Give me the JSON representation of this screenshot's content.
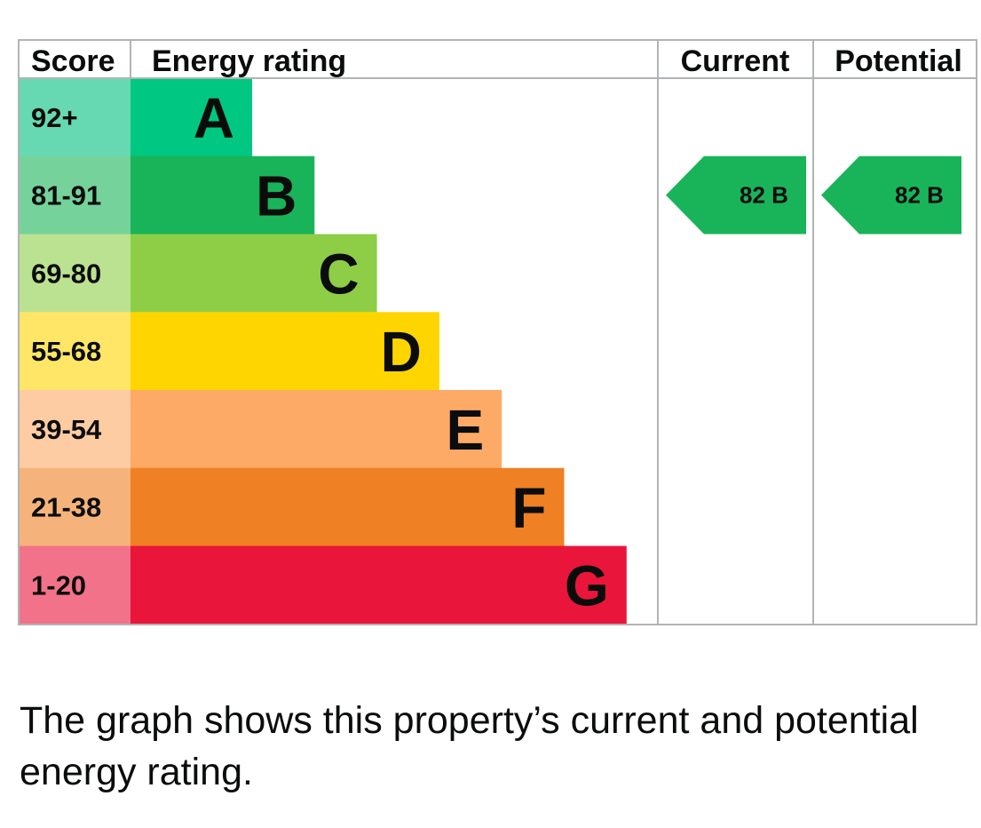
{
  "headers": {
    "score": "Score",
    "energy_rating": "Energy rating",
    "current": "Current",
    "potential": "Potential"
  },
  "chart_data": {
    "type": "bar",
    "bands": [
      {
        "score": "92+",
        "letter": "A",
        "bar_color": "#00c781",
        "score_color": "#66d9b3"
      },
      {
        "score": "81-91",
        "letter": "B",
        "bar_color": "#19b459",
        "score_color": "#75d29b"
      },
      {
        "score": "69-80",
        "letter": "C",
        "bar_color": "#8dce46",
        "score_color": "#bbe290"
      },
      {
        "score": "55-68",
        "letter": "D",
        "bar_color": "#ffd500",
        "score_color": "#ffe666"
      },
      {
        "score": "39-54",
        "letter": "E",
        "bar_color": "#fcaa65",
        "score_color": "#fdcca3"
      },
      {
        "score": "21-38",
        "letter": "F",
        "bar_color": "#ef8023",
        "score_color": "#f5b37b"
      },
      {
        "score": "1-20",
        "letter": "G",
        "bar_color": "#e9153b",
        "score_color": "#f27389"
      }
    ],
    "current": {
      "value": 82,
      "band": "B",
      "label": "82  B",
      "color": "#19b459"
    },
    "potential": {
      "value": 82,
      "band": "B",
      "label": "82  B",
      "color": "#19b459"
    }
  },
  "caption": "The graph shows this property’s current and potential energy rating."
}
